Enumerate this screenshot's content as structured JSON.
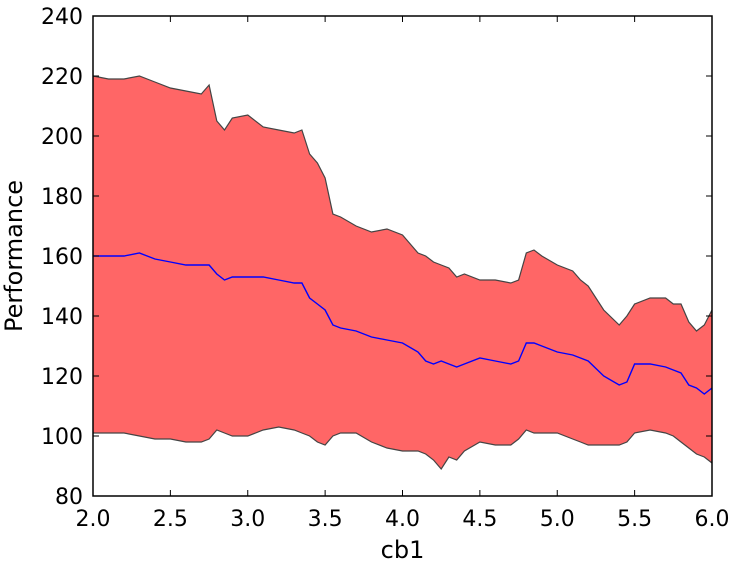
{
  "chart_data": {
    "type": "area",
    "xlabel": "cb1",
    "ylabel": "Performance",
    "xlim": [
      2.0,
      6.0
    ],
    "ylim": [
      80,
      240
    ],
    "xticks": [
      2.0,
      2.5,
      3.0,
      3.5,
      4.0,
      4.5,
      5.0,
      5.5,
      6.0
    ],
    "yticks": [
      80,
      100,
      120,
      140,
      160,
      180,
      200,
      220,
      240
    ],
    "grid": false,
    "colors": {
      "band_fill": "#ff6666",
      "band_edge": "#444444",
      "mean_line": "#0000ff"
    },
    "x": [
      2.0,
      2.1,
      2.2,
      2.3,
      2.4,
      2.5,
      2.6,
      2.7,
      2.75,
      2.8,
      2.85,
      2.9,
      3.0,
      3.1,
      3.2,
      3.3,
      3.35,
      3.4,
      3.45,
      3.5,
      3.55,
      3.6,
      3.7,
      3.8,
      3.9,
      4.0,
      4.1,
      4.15,
      4.2,
      4.25,
      4.3,
      4.35,
      4.4,
      4.5,
      4.6,
      4.7,
      4.75,
      4.8,
      4.85,
      4.9,
      5.0,
      5.1,
      5.15,
      5.2,
      5.3,
      5.4,
      5.45,
      5.5,
      5.6,
      5.7,
      5.75,
      5.8,
      5.85,
      5.9,
      5.95,
      6.0
    ],
    "series": [
      {
        "role": "upper",
        "values": [
          220,
          219,
          219,
          220,
          218,
          216,
          215,
          214,
          217,
          205,
          202,
          206,
          207,
          203,
          202,
          201,
          202,
          194,
          191,
          186,
          174,
          173,
          170,
          168,
          169,
          167,
          161,
          160,
          158,
          157,
          156,
          153,
          154,
          152,
          152,
          151,
          152,
          161,
          162,
          160,
          157,
          155,
          152,
          150,
          142,
          137,
          140,
          144,
          146,
          146,
          144,
          144,
          138,
          135,
          137,
          142
        ]
      },
      {
        "role": "mean",
        "values": [
          160,
          160,
          160,
          161,
          159,
          158,
          157,
          157,
          157,
          154,
          152,
          153,
          153,
          153,
          152,
          151,
          151,
          146,
          144,
          142,
          137,
          136,
          135,
          133,
          132,
          131,
          128,
          125,
          124,
          125,
          124,
          123,
          124,
          126,
          125,
          124,
          125,
          131,
          131,
          130,
          128,
          127,
          126,
          125,
          120,
          117,
          118,
          124,
          124,
          123,
          122,
          121,
          117,
          116,
          114,
          116
        ]
      },
      {
        "role": "lower",
        "values": [
          101,
          101,
          101,
          100,
          99,
          99,
          98,
          98,
          99,
          102,
          101,
          100,
          100,
          102,
          103,
          102,
          101,
          100,
          98,
          97,
          100,
          101,
          101,
          98,
          96,
          95,
          95,
          94,
          92,
          89,
          93,
          92,
          95,
          98,
          97,
          97,
          99,
          102,
          101,
          101,
          101,
          99,
          98,
          97,
          97,
          97,
          98,
          101,
          102,
          101,
          100,
          98,
          96,
          94,
          93,
          91
        ]
      }
    ]
  }
}
